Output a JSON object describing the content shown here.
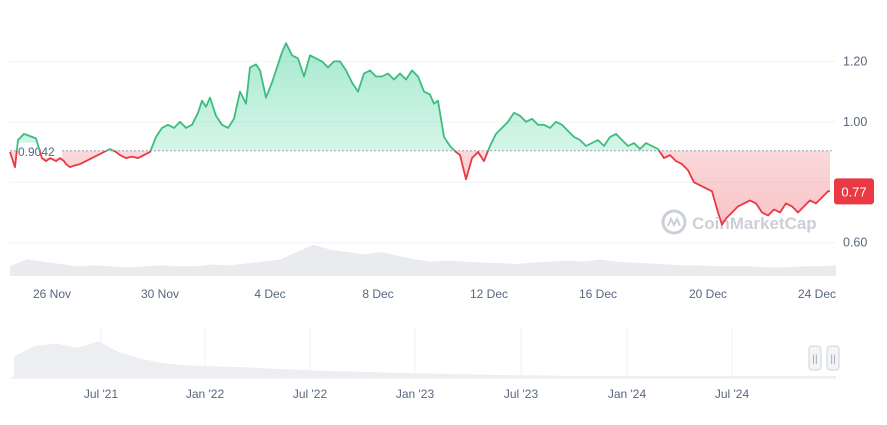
{
  "chart_data": {
    "type": "area",
    "title": "",
    "xlabel": "",
    "ylabel": "",
    "ylim": [
      0.47,
      1.37
    ],
    "baseline": {
      "value": 0.9042,
      "label": "0.9042"
    },
    "current_price": {
      "value": 0.77,
      "label": "0.77"
    },
    "x_ticks": [
      "26 Nov",
      "30 Nov",
      "4 Dec",
      "8 Dec",
      "12 Dec",
      "16 Dec",
      "20 Dec",
      "24 Dec"
    ],
    "y_ticks": [
      {
        "value": 1.2,
        "label": "1.20"
      },
      {
        "value": 1.0,
        "label": "1.00"
      },
      {
        "value": 0.6,
        "label": "0.60"
      }
    ],
    "x_range": [
      0,
      820
    ],
    "series": [
      {
        "name": "price",
        "x": [
          0,
          5,
          8,
          14,
          18,
          22,
          26,
          30,
          32,
          36,
          40,
          46,
          50,
          54,
          56,
          60,
          64,
          70,
          76,
          82,
          88,
          94,
          100,
          106,
          110,
          116,
          122,
          128,
          134,
          140,
          146,
          152,
          158,
          164,
          170,
          176,
          182,
          188,
          192,
          196,
          200,
          206,
          212,
          218,
          224,
          230,
          236,
          240,
          246,
          250,
          256,
          262,
          266,
          272,
          276,
          282,
          288,
          294,
          300,
          306,
          312,
          318,
          324,
          330,
          336,
          342,
          348,
          354,
          360,
          366,
          372,
          378,
          384,
          390,
          396,
          402,
          408,
          414,
          420,
          424,
          428,
          434,
          440,
          446,
          450,
          456,
          462,
          468,
          474,
          480,
          486,
          492,
          498,
          504,
          510,
          516,
          522,
          528,
          534,
          540,
          546,
          552,
          558,
          564,
          570,
          576,
          582,
          588,
          594,
          600,
          606,
          612,
          618,
          624,
          630,
          636,
          642,
          648,
          654,
          660,
          666,
          672,
          678,
          684,
          690,
          696,
          702,
          708,
          712,
          716,
          722,
          728,
          734,
          740,
          746,
          752,
          758,
          764,
          770,
          776,
          782,
          788,
          794,
          800,
          806,
          812,
          818,
          820
        ],
        "values": [
          0.9,
          0.85,
          0.94,
          0.96,
          0.955,
          0.95,
          0.945,
          0.9,
          0.88,
          0.87,
          0.88,
          0.87,
          0.88,
          0.87,
          0.86,
          0.85,
          0.855,
          0.86,
          0.87,
          0.88,
          0.89,
          0.9,
          0.91,
          0.9,
          0.89,
          0.88,
          0.885,
          0.88,
          0.89,
          0.9,
          0.95,
          0.98,
          0.99,
          0.98,
          1.0,
          0.98,
          0.99,
          1.03,
          1.07,
          1.05,
          1.08,
          1.02,
          0.99,
          0.98,
          1.01,
          1.1,
          1.06,
          1.18,
          1.19,
          1.17,
          1.08,
          1.13,
          1.17,
          1.23,
          1.26,
          1.22,
          1.21,
          1.15,
          1.22,
          1.21,
          1.2,
          1.18,
          1.2,
          1.2,
          1.17,
          1.13,
          1.1,
          1.16,
          1.17,
          1.15,
          1.15,
          1.16,
          1.14,
          1.16,
          1.14,
          1.17,
          1.15,
          1.1,
          1.09,
          1.06,
          1.07,
          0.95,
          0.92,
          0.9,
          0.89,
          0.81,
          0.88,
          0.9,
          0.87,
          0.92,
          0.96,
          0.98,
          1.0,
          1.03,
          1.02,
          1.0,
          1.01,
          0.99,
          0.99,
          0.98,
          1.0,
          0.99,
          0.97,
          0.95,
          0.94,
          0.92,
          0.93,
          0.94,
          0.92,
          0.95,
          0.96,
          0.94,
          0.92,
          0.93,
          0.91,
          0.93,
          0.92,
          0.91,
          0.88,
          0.89,
          0.87,
          0.86,
          0.84,
          0.8,
          0.79,
          0.78,
          0.77,
          0.7,
          0.66,
          0.68,
          0.7,
          0.72,
          0.73,
          0.74,
          0.73,
          0.7,
          0.69,
          0.71,
          0.7,
          0.73,
          0.72,
          0.7,
          0.72,
          0.74,
          0.73,
          0.75,
          0.77,
          0.77
        ]
      }
    ],
    "colors": {
      "up": "#16c784",
      "up_line": "#3dbd7d",
      "down": "#ea3943",
      "baseline": "#9aa3b2",
      "grid": "#f0f2f5",
      "label": "#58667e",
      "volume": "#dfe3e8",
      "watermark": "#c3c8d0"
    },
    "watermark": "CoinMarketCap",
    "volume_series": [
      0.2,
      0.35,
      0.3,
      0.25,
      0.2,
      0.22,
      0.2,
      0.18,
      0.2,
      0.22,
      0.2,
      0.2,
      0.24,
      0.22,
      0.26,
      0.3,
      0.34,
      0.5,
      0.65,
      0.55,
      0.5,
      0.45,
      0.5,
      0.42,
      0.35,
      0.3,
      0.32,
      0.3,
      0.28,
      0.27,
      0.25,
      0.28,
      0.3,
      0.32,
      0.3,
      0.34,
      0.3,
      0.28,
      0.26,
      0.24,
      0.22,
      0.22,
      0.2,
      0.2,
      0.2,
      0.18,
      0.18,
      0.2,
      0.2,
      0.22
    ],
    "navigator": {
      "x_ticks": [
        "Jul '21",
        "Jan '22",
        "Jul '22",
        "Jan '23",
        "Jul '23",
        "Jan '24",
        "Jul '24"
      ],
      "series": [
        0.5,
        0.75,
        0.8,
        0.7,
        0.85,
        0.6,
        0.45,
        0.35,
        0.3,
        0.28,
        0.26,
        0.25,
        0.22,
        0.2,
        0.18,
        0.16,
        0.15,
        0.14,
        0.12,
        0.11,
        0.1,
        0.09,
        0.08,
        0.07,
        0.06,
        0.06,
        0.05,
        0.05,
        0.05,
        0.05,
        0.04,
        0.04,
        0.04,
        0.04,
        0.04,
        0.05,
        0.05,
        0.05,
        0.05,
        0.05
      ],
      "handle_glyphs": [
        "||",
        "||"
      ]
    }
  }
}
